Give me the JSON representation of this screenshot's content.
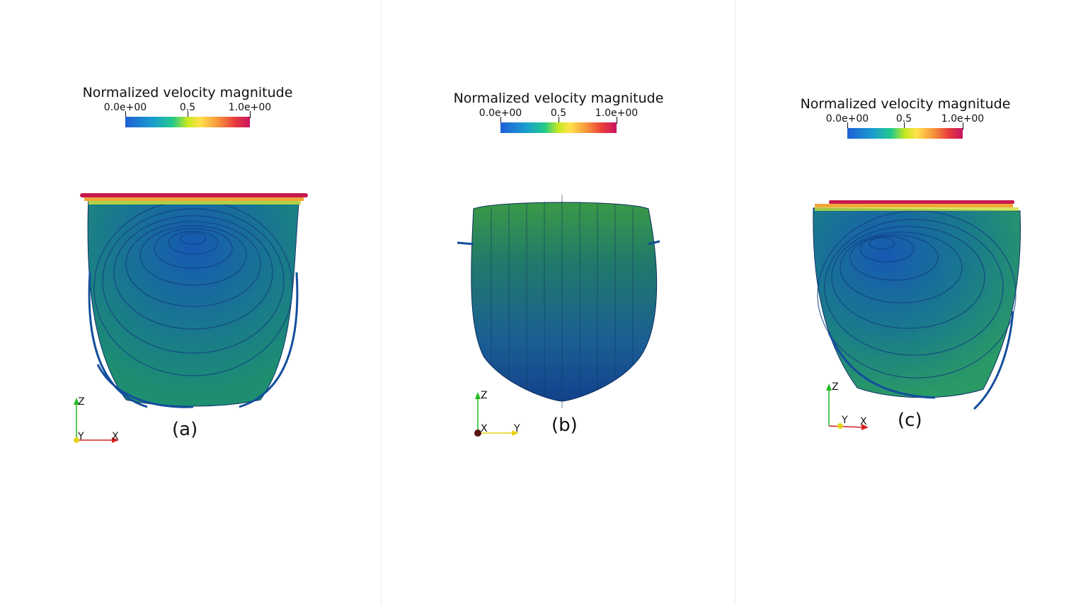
{
  "panels": [
    {
      "id": "a",
      "colorbar": {
        "title": "Normalized velocity magnitude",
        "tick_min": "0.0e+00",
        "tick_mid": "0.5",
        "tick_max": "1.0e+00"
      },
      "axes": {
        "vertical": "Z",
        "center": "Y",
        "horizontal": "X"
      },
      "label": "(a)"
    },
    {
      "id": "b",
      "colorbar": {
        "title": "Normalized velocity magnitude",
        "tick_min": "0.0e+00",
        "tick_mid": "0.5",
        "tick_max": "1.0e+00"
      },
      "axes": {
        "vertical": "Z",
        "center": "X",
        "horizontal": "Y"
      },
      "label": "(b)"
    },
    {
      "id": "c",
      "colorbar": {
        "title": "Normalized velocity magnitude",
        "tick_min": "0.0e+00",
        "tick_mid": "0.5",
        "tick_max": "1.0e+00"
      },
      "axes": {
        "vertical": "Z",
        "center": "Y",
        "horizontal": "X"
      },
      "label": "(c)"
    }
  ],
  "colors": {
    "low": "#1f5fd6",
    "mid": "#c7e81e",
    "high": "#c71563",
    "axis_z": "#22b822",
    "axis_x": "#d42020",
    "axis_y": "#e6d21a"
  }
}
